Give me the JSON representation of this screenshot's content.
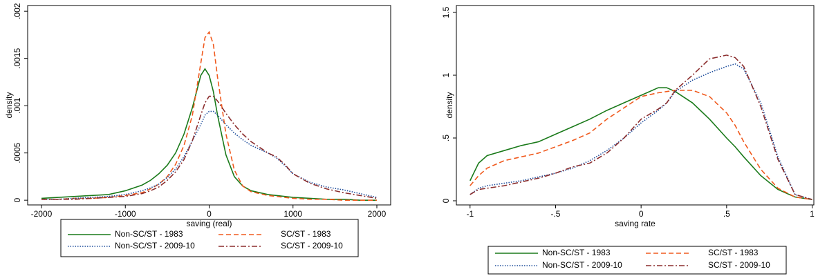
{
  "chart_data": [
    {
      "type": "line",
      "x_label": "saving (real)",
      "y_label": "density",
      "xlim": [
        -2165,
        2165
      ],
      "ylim": [
        -5e-05,
        0.00206
      ],
      "xticks": [
        -2000,
        -1000,
        0,
        1000,
        2000
      ],
      "yticks": [
        0,
        {
          "value": 0.0005,
          "label": ".0005"
        },
        {
          "value": 0.001,
          "label": ".001"
        },
        {
          "value": 0.0015,
          "label": ".0015"
        },
        {
          "value": 0.002,
          "label": ".002"
        }
      ],
      "legend": "bottom",
      "x": [
        -2000,
        -1800,
        -1600,
        -1400,
        -1200,
        -1000,
        -800,
        -700,
        -600,
        -500,
        -400,
        -300,
        -200,
        -100,
        -50,
        0,
        50,
        100,
        200,
        300,
        400,
        500,
        600,
        700,
        800,
        900,
        1000,
        1200,
        1400,
        1600,
        1800,
        2000
      ],
      "series": [
        {
          "name": "Non-SC/ST - 1983",
          "color": "#1a7a1a",
          "style": "solid",
          "values": [
            2e-05,
            3e-05,
            4e-05,
            5e-05,
            6e-05,
            0.0001,
            0.00016,
            0.00021,
            0.00028,
            0.00037,
            0.0005,
            0.0007,
            0.00098,
            0.00132,
            0.00139,
            0.00132,
            0.00115,
            0.0009,
            0.00048,
            0.00025,
            0.00015,
            0.0001,
            8e-05,
            6e-05,
            5e-05,
            4e-05,
            3e-05,
            2e-05,
            1e-05,
            1e-05,
            0,
            0
          ]
        },
        {
          "name": "SC/ST - 1983",
          "color": "#f05a1e",
          "style": "dash",
          "values": [
            1e-05,
            1e-05,
            2e-05,
            2e-05,
            3e-05,
            5e-05,
            8e-05,
            0.00012,
            0.00017,
            0.00025,
            0.00038,
            0.00058,
            0.0009,
            0.00145,
            0.00172,
            0.00178,
            0.00165,
            0.0013,
            0.0007,
            0.00032,
            0.00015,
            9e-05,
            7e-05,
            5e-05,
            4e-05,
            3e-05,
            2e-05,
            1e-05,
            1e-05,
            0,
            0,
            0
          ]
        },
        {
          "name": "Non-SC/ST - 2009-10",
          "color": "#1f4e9c",
          "style": "dot",
          "values": [
            1e-05,
            1e-05,
            2e-05,
            3e-05,
            4e-05,
            6e-05,
            0.0001,
            0.00013,
            0.00017,
            0.00024,
            0.00033,
            0.00046,
            0.00063,
            0.0008,
            0.0009,
            0.00094,
            0.00094,
            0.0009,
            0.0008,
            0.00071,
            0.00064,
            0.00058,
            0.00054,
            0.0005,
            0.00045,
            0.00037,
            0.00028,
            0.00019,
            0.00014,
            0.00011,
            7e-05,
            3e-05
          ]
        },
        {
          "name": "SC/ST - 2009-10",
          "color": "#8b2d2d",
          "style": "dashdot",
          "values": [
            1e-05,
            1e-05,
            1e-05,
            2e-05,
            3e-05,
            4e-05,
            7e-05,
            0.0001,
            0.00014,
            0.00021,
            0.0003,
            0.00043,
            0.00063,
            0.0009,
            0.00103,
            0.0011,
            0.0011,
            0.00105,
            0.00092,
            0.0008,
            0.0007,
            0.00062,
            0.00056,
            0.0005,
            0.00046,
            0.00038,
            0.00028,
            0.00018,
            0.00012,
            8e-05,
            5e-05,
            2e-05
          ]
        }
      ]
    },
    {
      "type": "line",
      "x_label": "saving rate",
      "y_label": "density",
      "xlim": [
        -1.08,
        1.01
      ],
      "ylim": [
        -0.033,
        1.555
      ],
      "xticks": [
        -1,
        {
          "value": -0.5,
          "label": "-.5"
        },
        0,
        {
          "value": 0.5,
          "label": ".5"
        },
        1
      ],
      "yticks": [
        0,
        {
          "value": 0.5,
          "label": ".5"
        },
        1,
        1.5
      ],
      "legend": "bottom",
      "x": [
        -1,
        -0.95,
        -0.9,
        -0.8,
        -0.7,
        -0.6,
        -0.5,
        -0.4,
        -0.3,
        -0.2,
        -0.1,
        0,
        0.1,
        0.15,
        0.2,
        0.3,
        0.4,
        0.5,
        0.55,
        0.6,
        0.7,
        0.8,
        0.9,
        1
      ],
      "series": [
        {
          "name": "Non-SC/ST - 1983",
          "color": "#1a7a1a",
          "style": "solid",
          "values": [
            0.16,
            0.3,
            0.36,
            0.4,
            0.44,
            0.47,
            0.53,
            0.59,
            0.65,
            0.72,
            0.78,
            0.84,
            0.9,
            0.9,
            0.87,
            0.78,
            0.65,
            0.5,
            0.43,
            0.35,
            0.2,
            0.09,
            0.03,
            0.01
          ]
        },
        {
          "name": "SC/ST - 1983",
          "color": "#f05a1e",
          "style": "dash",
          "values": [
            0.12,
            0.2,
            0.26,
            0.32,
            0.35,
            0.38,
            0.43,
            0.48,
            0.54,
            0.65,
            0.74,
            0.83,
            0.86,
            0.87,
            0.88,
            0.88,
            0.83,
            0.7,
            0.6,
            0.47,
            0.25,
            0.1,
            0.03,
            0.01
          ]
        },
        {
          "name": "Non-SC/ST - 2009-10",
          "color": "#1f4e9c",
          "style": "dot",
          "values": [
            0.05,
            0.1,
            0.12,
            0.14,
            0.16,
            0.19,
            0.22,
            0.26,
            0.32,
            0.4,
            0.5,
            0.62,
            0.72,
            0.78,
            0.87,
            0.96,
            1.02,
            1.07,
            1.09,
            1.05,
            0.78,
            0.35,
            0.05,
            0.01
          ]
        },
        {
          "name": "SC/ST - 2009-10",
          "color": "#8b2d2d",
          "style": "dashdot",
          "values": [
            0.05,
            0.09,
            0.1,
            0.12,
            0.15,
            0.18,
            0.22,
            0.27,
            0.3,
            0.38,
            0.5,
            0.65,
            0.73,
            0.78,
            0.88,
            1.0,
            1.13,
            1.16,
            1.14,
            1.07,
            0.75,
            0.33,
            0.05,
            0.01
          ]
        }
      ]
    }
  ]
}
